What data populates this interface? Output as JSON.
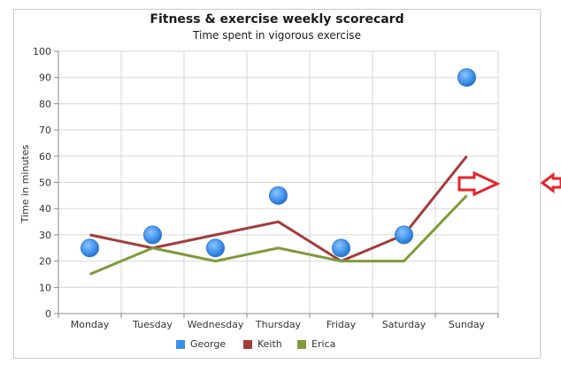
{
  "chart_data": {
    "type": "line",
    "title": "Fitness & exercise weekly scorecard",
    "subtitle": "Time spent in vigorous exercise",
    "xlabel": "",
    "ylabel": "Time in minutes",
    "categories": [
      "Monday",
      "Tuesday",
      "Wednesday",
      "Thursday",
      "Friday",
      "Saturday",
      "Sunday"
    ],
    "ylim": [
      0,
      100
    ],
    "yticks": [
      "0",
      "10",
      "20",
      "30",
      "40",
      "50",
      "60",
      "70",
      "80",
      "90",
      "100"
    ],
    "grid": true,
    "legend_position": "bottom",
    "series": [
      {
        "name": "George",
        "style": "markers",
        "color": "#3c8fe8",
        "values": [
          25,
          30,
          25,
          45,
          25,
          30,
          90
        ]
      },
      {
        "name": "Keith",
        "style": "line",
        "color": "#a33b3b",
        "values": [
          30,
          25,
          30,
          35,
          20,
          30,
          60
        ]
      },
      {
        "name": "Erica",
        "style": "line",
        "color": "#7f9a3a",
        "values": [
          15,
          25,
          20,
          25,
          20,
          20,
          45
        ]
      }
    ]
  },
  "annotations": {
    "arrow_color": "#e3262b"
  }
}
